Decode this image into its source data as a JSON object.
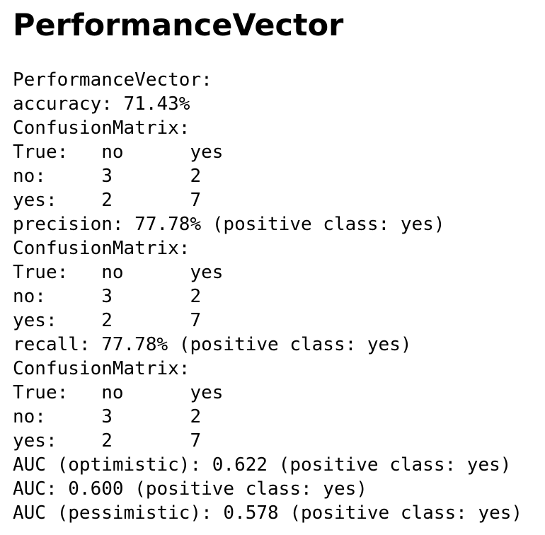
{
  "header": {
    "title": "PerformanceVector"
  },
  "body": {
    "lines": [
      "PerformanceVector:",
      "accuracy: 71.43%",
      "ConfusionMatrix:",
      "True:   no      yes",
      "no:     3       2",
      "yes:    2       7",
      "precision: 77.78% (positive class: yes)",
      "ConfusionMatrix:",
      "True:   no      yes",
      "no:     3       2",
      "yes:    2       7",
      "recall: 77.78% (positive class: yes)",
      "ConfusionMatrix:",
      "True:   no      yes",
      "no:     3       2",
      "yes:    2       7",
      "AUC (optimistic): 0.622 (positive class: yes)",
      "AUC: 0.600 (positive class: yes)",
      "AUC (pessimistic): 0.578 (positive class: yes)"
    ]
  }
}
